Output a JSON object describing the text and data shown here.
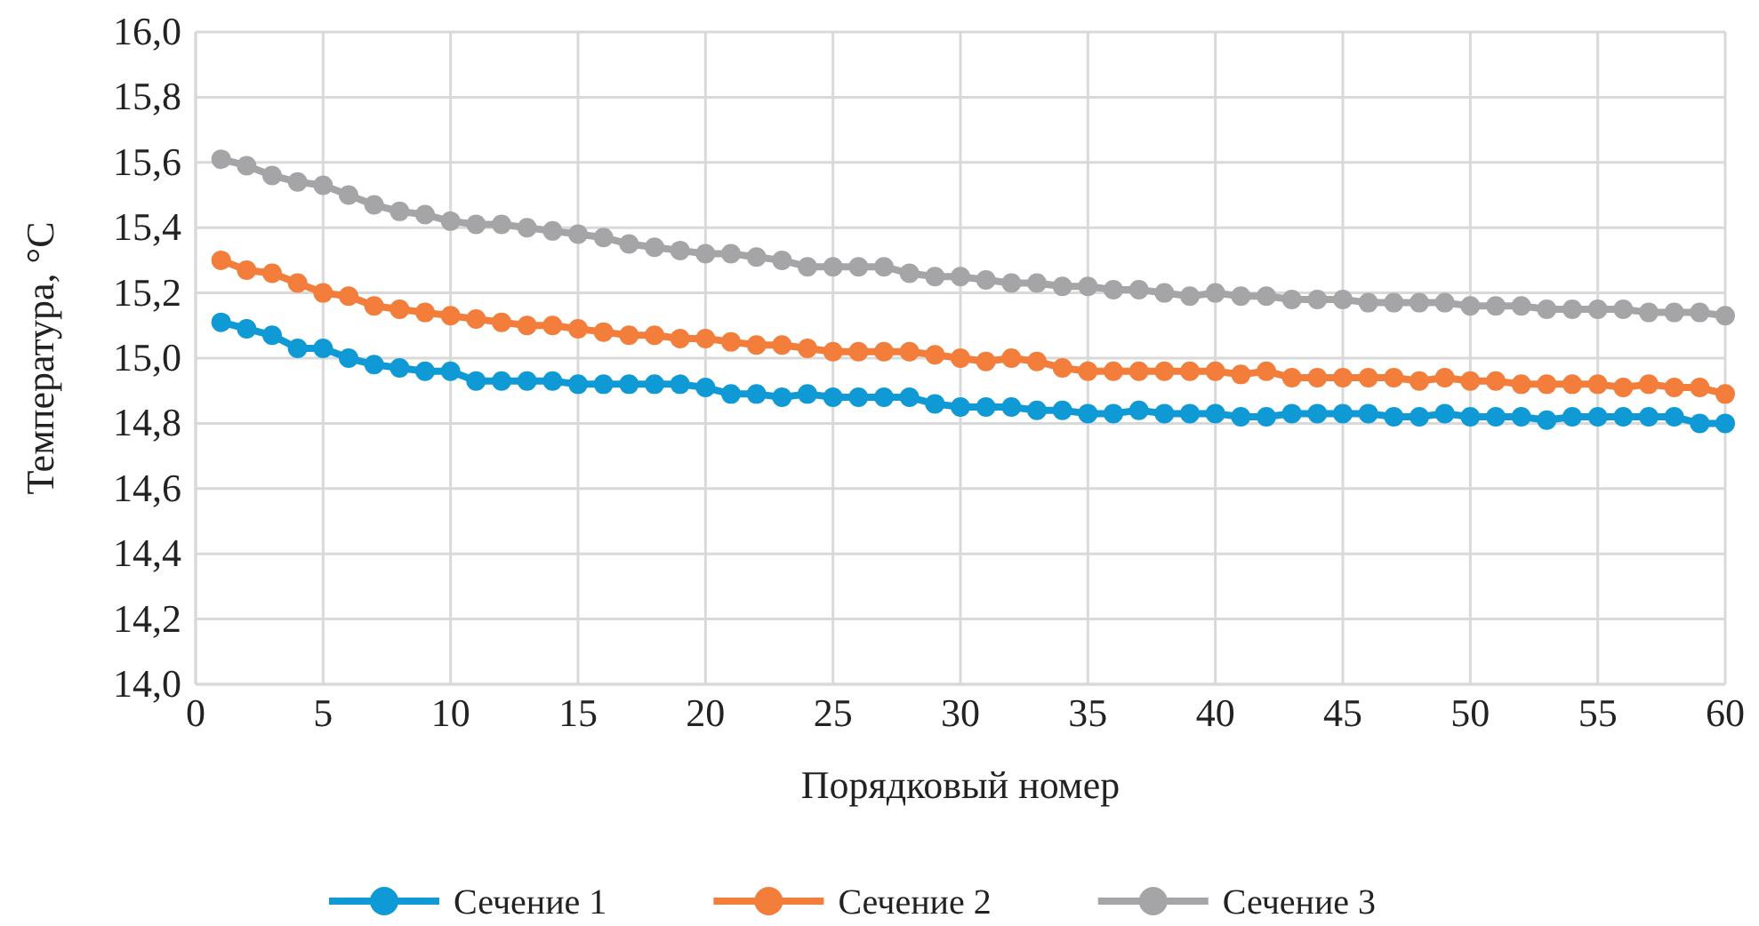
{
  "chart_data": {
    "type": "line",
    "xlabel": "Порядковый номер",
    "ylabel": "Температура, °C",
    "x": [
      1,
      2,
      3,
      4,
      5,
      6,
      7,
      8,
      9,
      10,
      11,
      12,
      13,
      14,
      15,
      16,
      17,
      18,
      19,
      20,
      21,
      22,
      23,
      24,
      25,
      26,
      27,
      28,
      29,
      30,
      31,
      32,
      33,
      34,
      35,
      36,
      37,
      38,
      39,
      40,
      41,
      42,
      43,
      44,
      45,
      46,
      47,
      48,
      49,
      50,
      51,
      52,
      53,
      54,
      55,
      56,
      57,
      58,
      59,
      60
    ],
    "series": [
      {
        "name": "Сечение 1",
        "color": "#0f9ad6",
        "values": [
          15.11,
          15.09,
          15.07,
          15.03,
          15.03,
          15.0,
          14.98,
          14.97,
          14.96,
          14.96,
          14.93,
          14.93,
          14.93,
          14.93,
          14.92,
          14.92,
          14.92,
          14.92,
          14.92,
          14.91,
          14.89,
          14.89,
          14.88,
          14.89,
          14.88,
          14.88,
          14.88,
          14.88,
          14.86,
          14.85,
          14.85,
          14.85,
          14.84,
          14.84,
          14.83,
          14.83,
          14.84,
          14.83,
          14.83,
          14.83,
          14.82,
          14.82,
          14.83,
          14.83,
          14.83,
          14.83,
          14.82,
          14.82,
          14.83,
          14.82,
          14.82,
          14.82,
          14.81,
          14.82,
          14.82,
          14.82,
          14.82,
          14.82,
          14.8,
          14.8
        ]
      },
      {
        "name": "Сечение 2",
        "color": "#f37d3a",
        "values": [
          15.3,
          15.27,
          15.26,
          15.23,
          15.2,
          15.19,
          15.16,
          15.15,
          15.14,
          15.13,
          15.12,
          15.11,
          15.1,
          15.1,
          15.09,
          15.08,
          15.07,
          15.07,
          15.06,
          15.06,
          15.05,
          15.04,
          15.04,
          15.03,
          15.02,
          15.02,
          15.02,
          15.02,
          15.01,
          15.0,
          14.99,
          15.0,
          14.99,
          14.97,
          14.96,
          14.96,
          14.96,
          14.96,
          14.96,
          14.96,
          14.95,
          14.96,
          14.94,
          14.94,
          14.94,
          14.94,
          14.94,
          14.93,
          14.94,
          14.93,
          14.93,
          14.92,
          14.92,
          14.92,
          14.92,
          14.91,
          14.92,
          14.91,
          14.91,
          14.89
        ]
      },
      {
        "name": "Сечение 3",
        "color": "#a5a5a7",
        "values": [
          15.61,
          15.59,
          15.56,
          15.54,
          15.53,
          15.5,
          15.47,
          15.45,
          15.44,
          15.42,
          15.41,
          15.41,
          15.4,
          15.39,
          15.38,
          15.37,
          15.35,
          15.34,
          15.33,
          15.32,
          15.32,
          15.31,
          15.3,
          15.28,
          15.28,
          15.28,
          15.28,
          15.26,
          15.25,
          15.25,
          15.24,
          15.23,
          15.23,
          15.22,
          15.22,
          15.21,
          15.21,
          15.2,
          15.19,
          15.2,
          15.19,
          15.19,
          15.18,
          15.18,
          15.18,
          15.17,
          15.17,
          15.17,
          15.17,
          15.16,
          15.16,
          15.16,
          15.15,
          15.15,
          15.15,
          15.15,
          15.14,
          15.14,
          15.14,
          15.13
        ]
      }
    ],
    "xlim": [
      0,
      60
    ],
    "xticks": [
      0,
      5,
      10,
      15,
      20,
      25,
      30,
      35,
      40,
      45,
      50,
      55,
      60
    ],
    "ylim": [
      14,
      16
    ],
    "yticks": [
      {
        "value": 14,
        "label": "14,0"
      },
      {
        "value": 14.2,
        "label": "14,2"
      },
      {
        "value": 14.4,
        "label": "14,4"
      },
      {
        "value": 14.6,
        "label": "14,6"
      },
      {
        "value": 14.8,
        "label": "14,8"
      },
      {
        "value": 15,
        "label": "15,0"
      },
      {
        "value": 15.2,
        "label": "15,2"
      },
      {
        "value": 15.4,
        "label": "15,4"
      },
      {
        "value": 15.6,
        "label": "15,6"
      },
      {
        "value": 15.8,
        "label": "15,8"
      },
      {
        "value": 16,
        "label": "16,0"
      }
    ],
    "grid": true,
    "legend": "bottom",
    "marker": "circle",
    "line_style": "solid"
  }
}
